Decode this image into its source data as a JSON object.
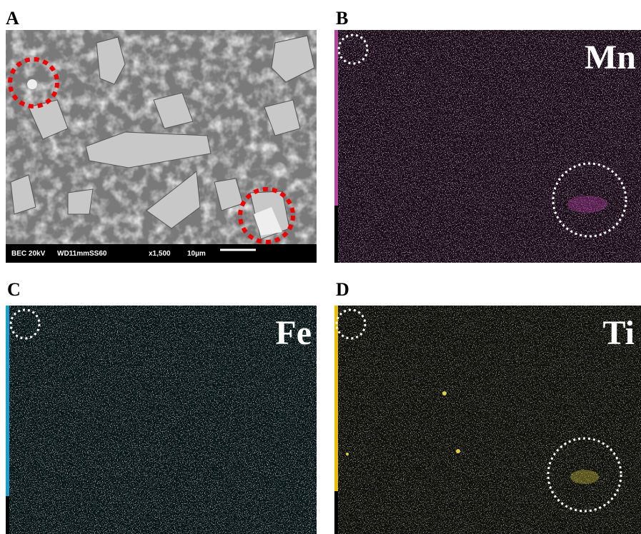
{
  "panels": [
    {
      "label": "A",
      "info_bar": [
        "BEC 20kV",
        "WD11mmSS60",
        "x1,500",
        "10µm"
      ]
    },
    {
      "label": "B",
      "element": "Mn"
    },
    {
      "label": "C",
      "element": "Fe"
    },
    {
      "label": "D",
      "element": "Ti"
    }
  ]
}
